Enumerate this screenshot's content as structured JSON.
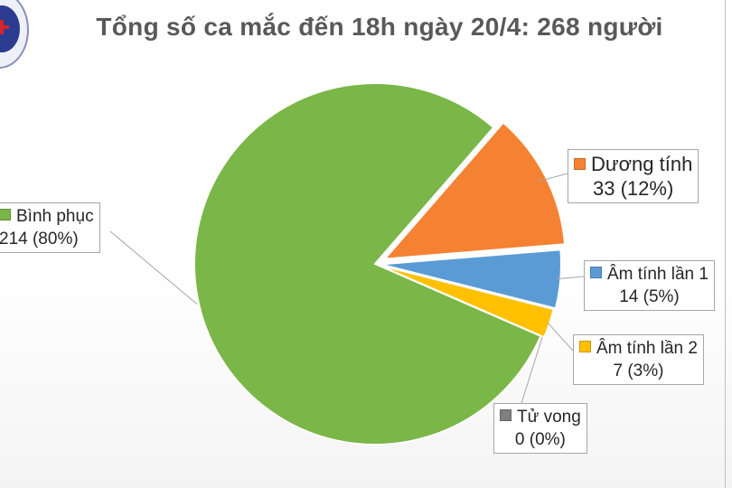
{
  "title": "Tổng số ca mắc đến 18h ngày 20/4: 268 người",
  "logo": {
    "name": "ministry-of-health-emblem"
  },
  "chart_data": {
    "type": "pie",
    "title": "Tổng số ca mắc đến 18h ngày 20/4: 268 người",
    "total": 268,
    "slices": [
      {
        "name": "Bình phục",
        "value": 214,
        "percent": "80%",
        "color": "#7ab648"
      },
      {
        "name": "Dương tính",
        "value": 33,
        "percent": "12%",
        "color": "#f58233"
      },
      {
        "name": "Âm tính lần 1",
        "value": 14,
        "percent": "5%",
        "color": "#5b9bd5"
      },
      {
        "name": "Âm tính lần 2",
        "value": 7,
        "percent": "3%",
        "color": "#ffc000"
      },
      {
        "name": "Tử vong",
        "value": 0,
        "percent": "0%",
        "color": "#7f7f7f"
      }
    ],
    "labels": [
      {
        "name": "Bình phục",
        "value_text": "214 (80%)"
      },
      {
        "name": "Dương tính",
        "value_text": "33 (12%)"
      },
      {
        "name": "Âm tính lần 1",
        "value_text": "14 (5%)"
      },
      {
        "name": "Âm tính lần 2",
        "value_text": "7 (3%)"
      },
      {
        "name": "Tử vong",
        "value_text": "0 (0%)"
      }
    ]
  }
}
